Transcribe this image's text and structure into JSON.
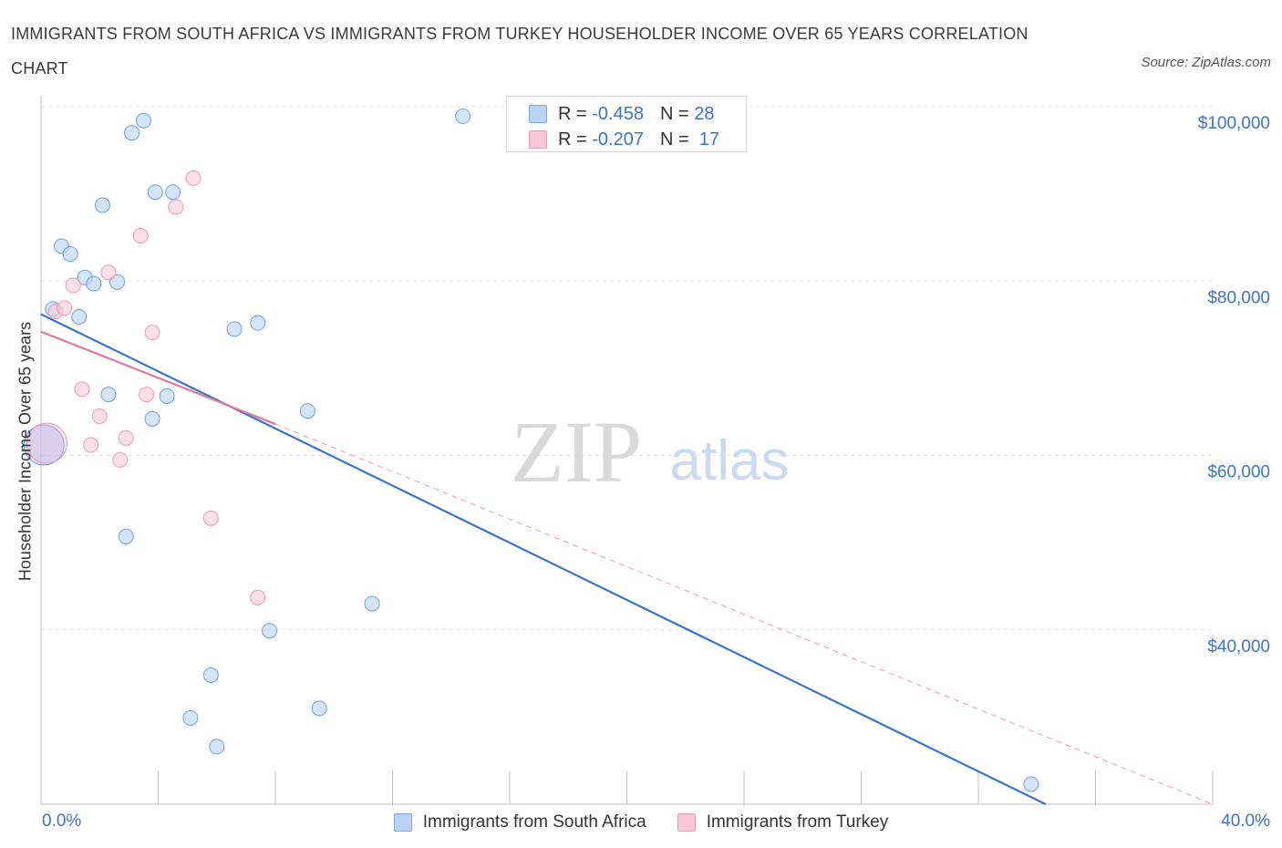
{
  "title": "IMMIGRANTS FROM SOUTH AFRICA VS IMMIGRANTS FROM TURKEY HOUSEHOLDER INCOME OVER 65 YEARS CORRELATION CHART",
  "source": "Source: ZipAtlas.com",
  "watermark": {
    "zip": "ZIP",
    "atlas": "atlas"
  },
  "legend": {
    "r_label": "R =",
    "n_label": "N =",
    "rows": [
      {
        "r": "-0.458",
        "n": "28"
      },
      {
        "r": "-0.207",
        "n": "17"
      }
    ]
  },
  "colors": {
    "blue": "#3c74c9",
    "pink": "#e07a9c",
    "blue_fill": "#b9d4f5",
    "pink_fill": "#f8c6d4"
  },
  "chart_data": {
    "type": "scatter",
    "title": "IMMIGRANTS FROM SOUTH AFRICA VS IMMIGRANTS FROM TURKEY HOUSEHOLDER INCOME OVER 65 YEARS CORRELATION CHART",
    "xlabel": "",
    "ylabel": "Householder Income Over 65 years",
    "xlim": [
      0,
      40
    ],
    "ylim": [
      20000,
      100000
    ],
    "x_tick_labels": [
      "0.0%",
      "40.0%"
    ],
    "y_ticks": [
      40000,
      60000,
      80000,
      100000
    ],
    "y_tick_labels": [
      "$40,000",
      "$60,000",
      "$80,000",
      "$100,000"
    ],
    "series": [
      {
        "name": "Immigrants from South Africa",
        "color": "#3c74c9",
        "points": [
          {
            "x": 0.4,
            "y": 76800
          },
          {
            "x": 0.7,
            "y": 84000
          },
          {
            "x": 1.0,
            "y": 83100
          },
          {
            "x": 1.3,
            "y": 75900
          },
          {
            "x": 1.5,
            "y": 80400
          },
          {
            "x": 1.8,
            "y": 79700
          },
          {
            "x": 2.1,
            "y": 88700
          },
          {
            "x": 2.3,
            "y": 67000
          },
          {
            "x": 2.6,
            "y": 79900
          },
          {
            "x": 2.9,
            "y": 50700
          },
          {
            "x": 3.1,
            "y": 97000
          },
          {
            "x": 3.5,
            "y": 98400
          },
          {
            "x": 3.8,
            "y": 64200
          },
          {
            "x": 3.9,
            "y": 90200
          },
          {
            "x": 4.3,
            "y": 66800
          },
          {
            "x": 4.5,
            "y": 90200
          },
          {
            "x": 5.1,
            "y": 29900
          },
          {
            "x": 5.8,
            "y": 34800
          },
          {
            "x": 6.0,
            "y": 26600
          },
          {
            "x": 6.6,
            "y": 74500
          },
          {
            "x": 7.4,
            "y": 75200
          },
          {
            "x": 7.8,
            "y": 39900
          },
          {
            "x": 9.1,
            "y": 65100
          },
          {
            "x": 9.5,
            "y": 31000
          },
          {
            "x": 11.3,
            "y": 43000
          },
          {
            "x": 14.4,
            "y": 98900
          },
          {
            "x": 33.8,
            "y": 22300
          },
          {
            "x": 0.1,
            "y": 61200
          }
        ],
        "trend": {
          "x": [
            0,
            34.3
          ],
          "y": [
            76200,
            20000
          ]
        }
      },
      {
        "name": "Immigrants from Turkey",
        "color": "#e07a9c",
        "points": [
          {
            "x": 0.5,
            "y": 76500
          },
          {
            "x": 0.8,
            "y": 76900
          },
          {
            "x": 1.1,
            "y": 79500
          },
          {
            "x": 1.4,
            "y": 67600
          },
          {
            "x": 1.7,
            "y": 61200
          },
          {
            "x": 2.0,
            "y": 64500
          },
          {
            "x": 2.3,
            "y": 81000
          },
          {
            "x": 2.7,
            "y": 59500
          },
          {
            "x": 2.9,
            "y": 62000
          },
          {
            "x": 3.4,
            "y": 85200
          },
          {
            "x": 3.6,
            "y": 67000
          },
          {
            "x": 3.8,
            "y": 74100
          },
          {
            "x": 4.6,
            "y": 88500
          },
          {
            "x": 5.2,
            "y": 91800
          },
          {
            "x": 5.8,
            "y": 52800
          },
          {
            "x": 7.4,
            "y": 43700
          },
          {
            "x": 0.2,
            "y": 61400
          }
        ],
        "trend": {
          "x": [
            0,
            8.0
          ],
          "y": [
            74200,
            63600
          ]
        },
        "trend_extension": {
          "x": [
            8.0,
            40
          ],
          "y": [
            63600,
            20000
          ]
        }
      }
    ]
  },
  "bottom_legend": [
    {
      "label": "Immigrants from South Africa"
    },
    {
      "label": "Immigrants from Turkey"
    }
  ]
}
